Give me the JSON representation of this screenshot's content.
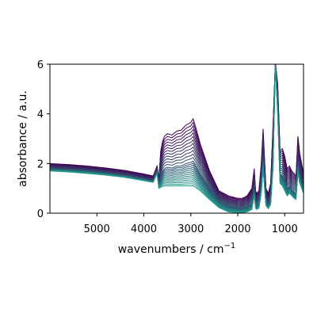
{
  "chart_data": {
    "type": "line",
    "xlabel": "wavenumbers / cm",
    "xlabel_superscript": "−1",
    "ylabel": "absorbance / a.u.",
    "xlim": [
      5999,
      600
    ],
    "ylim": [
      0,
      6
    ],
    "x_reversed": true,
    "grid": false,
    "legend": "none",
    "colormap": "viridis (purple to teal)",
    "series_count": 25,
    "color_start": "#440154",
    "color_end": "#1f9a8a",
    "xticks": [
      5000,
      4000,
      3000,
      2000,
      1000
    ],
    "xtick_labels": [
      "5000",
      "4000",
      "3000",
      "2000",
      "1000"
    ],
    "yticks": [
      0,
      2,
      4,
      6
    ],
    "ytick_labels": [
      "0",
      "2",
      "4",
      "6"
    ],
    "x": [
      5999,
      5600,
      5200,
      4800,
      4400,
      4000,
      3800,
      3720,
      3680,
      3640,
      3600,
      3560,
      3500,
      3400,
      3300,
      3200,
      3100,
      3000,
      2950,
      2900,
      2800,
      2600,
      2400,
      2200,
      2000,
      1900,
      1800,
      1700,
      1650,
      1620,
      1600,
      1550,
      1500,
      1460,
      1430,
      1400,
      1350,
      1300,
      1250,
      1200,
      1150,
      1100,
      1050,
      1000,
      950,
      900,
      850,
      800,
      760,
      720,
      680,
      640,
      600
    ],
    "series": [
      {
        "values": [
          2.0,
          1.96,
          1.9,
          1.82,
          1.72,
          1.58,
          1.5,
          1.9,
          1.4,
          2.5,
          2.9,
          3.1,
          3.2,
          3.15,
          3.3,
          3.35,
          3.55,
          3.65,
          3.8,
          3.5,
          2.8,
          1.7,
          0.9,
          0.7,
          0.6,
          0.6,
          0.7,
          1.0,
          1.8,
          0.9,
          0.8,
          0.9,
          2.0,
          3.4,
          2.2,
          1.0,
          0.8,
          1.2,
          3.5,
          6.1,
          5.2,
          2.5,
          2.6,
          2.3,
          1.8,
          1.9,
          1.7,
          1.6,
          1.5,
          3.1,
          2.4,
          2.0,
          1.6
        ]
      },
      {
        "values": [
          1.8,
          1.76,
          1.7,
          1.62,
          1.52,
          1.38,
          1.3,
          1.7,
          1.1,
          1.5,
          1.7,
          1.8,
          1.85,
          1.82,
          1.9,
          1.9,
          2.0,
          2.05,
          2.1,
          1.95,
          1.6,
          1.0,
          0.5,
          0.3,
          0.22,
          0.2,
          0.25,
          0.4,
          1.0,
          0.4,
          0.35,
          0.4,
          1.1,
          2.2,
          1.3,
          0.5,
          0.35,
          0.6,
          2.2,
          6.0,
          4.4,
          1.6,
          1.5,
          1.3,
          1.0,
          1.1,
          0.95,
          0.85,
          0.8,
          2.0,
          1.5,
          1.25,
          1.0
        ]
      },
      {
        "values": [
          1.7,
          1.66,
          1.6,
          1.53,
          1.44,
          1.31,
          1.24,
          1.6,
          1.0,
          1.05,
          1.08,
          1.1,
          1.1,
          1.1,
          1.1,
          1.1,
          1.1,
          1.1,
          1.1,
          1.05,
          0.9,
          0.55,
          0.22,
          0.05,
          0.02,
          0.02,
          0.05,
          0.15,
          0.7,
          0.2,
          0.15,
          0.2,
          0.8,
          1.8,
          1.0,
          0.3,
          0.18,
          0.35,
          1.8,
          5.9,
          4.0,
          1.2,
          1.1,
          0.9,
          0.7,
          0.8,
          0.7,
          0.6,
          0.55,
          1.6,
          1.2,
          1.0,
          0.8
        ]
      }
    ]
  }
}
